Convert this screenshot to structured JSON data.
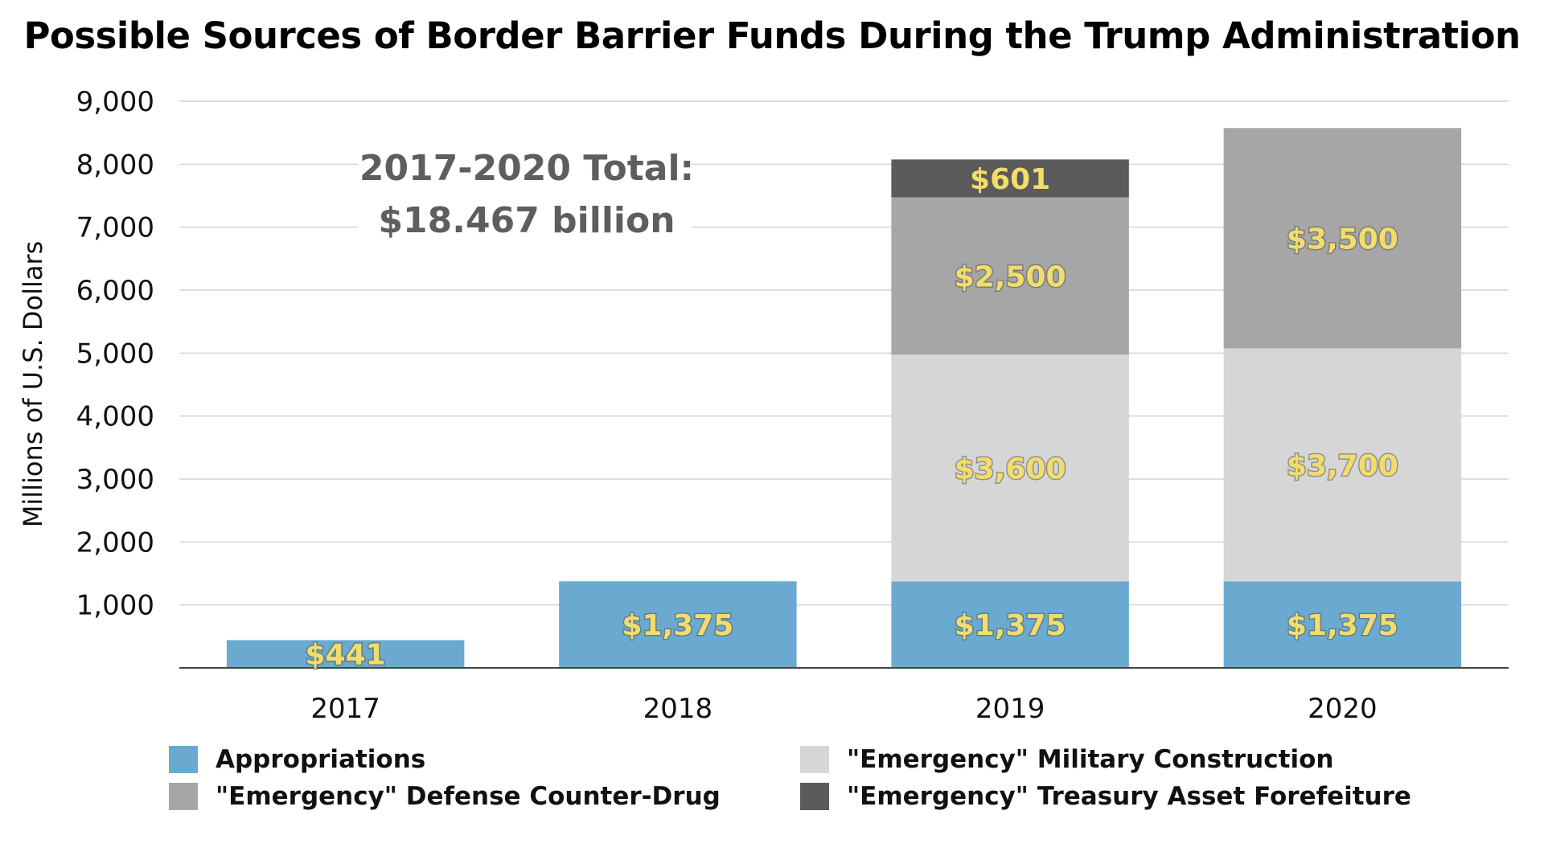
{
  "chart_data": {
    "type": "bar",
    "stacked": true,
    "title": "Possible Sources of Border Barrier Funds During the Trump Administration",
    "ylabel": "Millions of U.S. Dollars",
    "xlabel": "",
    "ylim": [
      0,
      9000
    ],
    "yticks": [
      1000,
      2000,
      3000,
      4000,
      5000,
      6000,
      7000,
      8000,
      9000
    ],
    "ytick_labels": [
      "1,000",
      "2,000",
      "3,000",
      "4,000",
      "5,000",
      "6,000",
      "7,000",
      "8,000",
      "9,000"
    ],
    "grid": true,
    "legend_position": "bottom",
    "categories": [
      "2017",
      "2018",
      "2019",
      "2020"
    ],
    "series": [
      {
        "name": "Appropriations",
        "color": "#6aaad0",
        "values": [
          441,
          1375,
          1375,
          1375
        ],
        "labels": [
          "$441",
          "$1,375",
          "$1,375",
          "$1,375"
        ]
      },
      {
        "name": "\"Emergency\" Military Construction",
        "color": "#d6d6d6",
        "values": [
          0,
          0,
          3600,
          3700
        ],
        "labels": [
          "",
          "",
          "$3,600",
          "$3,700"
        ]
      },
      {
        "name": "\"Emergency\" Defense Counter-Drug",
        "color": "#a6a6a6",
        "values": [
          0,
          0,
          2500,
          3500
        ],
        "labels": [
          "",
          "",
          "$2,500",
          "$3,500"
        ]
      },
      {
        "name": "\"Emergency\" Treasury Asset Forefeiture",
        "color": "#5b5b5b",
        "values": [
          0,
          0,
          601,
          0
        ],
        "labels": [
          "",
          "",
          "$601",
          ""
        ]
      }
    ],
    "annotation": {
      "line1": "2017-2020 Total:",
      "line2": "$18.467 billion"
    }
  }
}
